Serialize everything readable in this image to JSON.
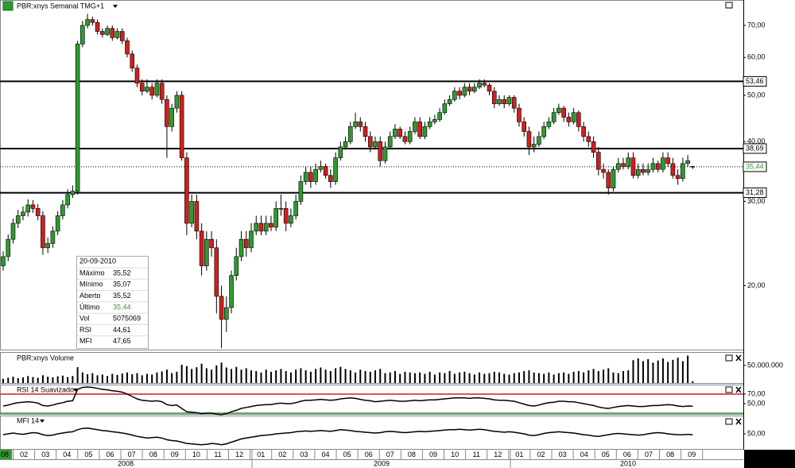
{
  "price": {
    "type": "candlestick",
    "title": "PBR:xnys Semanal TMG+1",
    "log": true,
    "ylim": [
      14.7,
      79.1
    ],
    "yticks": [
      {
        "value": 70,
        "label": "70,00"
      },
      {
        "value": 60,
        "label": "60,00"
      },
      {
        "value": 50,
        "label": "50,00"
      },
      {
        "value": 40,
        "label": "40,00"
      },
      {
        "value": 30,
        "label": "30,00"
      },
      {
        "value": 20,
        "label": "20,00"
      }
    ],
    "levels": [
      {
        "value": 53.46,
        "label": "53,46"
      },
      {
        "value": 38.69,
        "label": "38,69"
      },
      {
        "value": 31.28,
        "label": "31,28"
      }
    ],
    "last": {
      "value": 35.44,
      "label": "35,44"
    },
    "up_color": "#2f9a2f",
    "down_color": "#d11f1f",
    "candles": [
      [
        22,
        23.6,
        21.5,
        23
      ],
      [
        23,
        25.6,
        22.5,
        25
      ],
      [
        25,
        27.6,
        24.5,
        27
      ],
      [
        27,
        28.8,
        26.4,
        28
      ],
      [
        28,
        29.3,
        27.4,
        28.5
      ],
      [
        28.5,
        30.3,
        27.9,
        29.5
      ],
      [
        29.5,
        30.2,
        28.4,
        29
      ],
      [
        29,
        29.6,
        27.4,
        28
      ],
      [
        28,
        28.6,
        23.2,
        24
      ],
      [
        24,
        25.2,
        23.4,
        24.5
      ],
      [
        24.5,
        26.6,
        24,
        26
      ],
      [
        26,
        28.6,
        25.5,
        28
      ],
      [
        28,
        30.2,
        27.5,
        29.5
      ],
      [
        29.5,
        31.8,
        29,
        31
      ],
      [
        31,
        32.4,
        30.5,
        31.5
      ],
      [
        31.5,
        65,
        31,
        64
      ],
      [
        64,
        71.5,
        63,
        70
      ],
      [
        70,
        74,
        69,
        72
      ],
      [
        72,
        73,
        70,
        71
      ],
      [
        71,
        72,
        67,
        68
      ],
      [
        68,
        69,
        66,
        67
      ],
      [
        67,
        70,
        66.5,
        69
      ],
      [
        69,
        70,
        65,
        66
      ],
      [
        66,
        69,
        65.5,
        68
      ],
      [
        68,
        69,
        64,
        65
      ],
      [
        65,
        66,
        60,
        61
      ],
      [
        61,
        62,
        56,
        57
      ],
      [
        57,
        58,
        52,
        53
      ],
      [
        53,
        54,
        50,
        51
      ],
      [
        51,
        54,
        50.5,
        52
      ],
      [
        52,
        53,
        49,
        50
      ],
      [
        50,
        54,
        49.5,
        53
      ],
      [
        53,
        54,
        48,
        49
      ],
      [
        49,
        50,
        37,
        43
      ],
      [
        43,
        48,
        42,
        47
      ],
      [
        47,
        51,
        46,
        50
      ],
      [
        50,
        51,
        36.5,
        37
      ],
      [
        37,
        38,
        25.5,
        27
      ],
      [
        27,
        31,
        26.5,
        30
      ],
      [
        30,
        31,
        25,
        26
      ],
      [
        26,
        27,
        21,
        22
      ],
      [
        22,
        26,
        21.5,
        25
      ],
      [
        25,
        26,
        23,
        24
      ],
      [
        24,
        25,
        17.5,
        19
      ],
      [
        19,
        20,
        14.8,
        17
      ],
      [
        17,
        19,
        16,
        18
      ],
      [
        18,
        21.5,
        17.5,
        21
      ],
      [
        21,
        24,
        20.5,
        23
      ],
      [
        23,
        26,
        22.5,
        25
      ],
      [
        25,
        26,
        23,
        24
      ],
      [
        24,
        27,
        23.5,
        26
      ],
      [
        26,
        28,
        25.5,
        27
      ],
      [
        27,
        28,
        25.5,
        26
      ],
      [
        26,
        28,
        25.5,
        27
      ],
      [
        27,
        28,
        26,
        26.5
      ],
      [
        26.5,
        30,
        26,
        29
      ],
      [
        29,
        31,
        28,
        29
      ],
      [
        29,
        30,
        26,
        27
      ],
      [
        27,
        29,
        26.5,
        28
      ],
      [
        28,
        31,
        27.5,
        30
      ],
      [
        30,
        34,
        29.5,
        33
      ],
      [
        33,
        35.5,
        32.5,
        34.5
      ],
      [
        34.5,
        35.5,
        32,
        33
      ],
      [
        33,
        36,
        32.5,
        35
      ],
      [
        35,
        36.5,
        34.5,
        35.5
      ],
      [
        35.5,
        36,
        33.5,
        34
      ],
      [
        34,
        35,
        32,
        33
      ],
      [
        33,
        38,
        32.5,
        37
      ],
      [
        37,
        40,
        36.5,
        39
      ],
      [
        39,
        41,
        38.5,
        40
      ],
      [
        40,
        44,
        39.5,
        43
      ],
      [
        43,
        46,
        42.5,
        44
      ],
      [
        44,
        45,
        42,
        43
      ],
      [
        43,
        44,
        40,
        41
      ],
      [
        41,
        42,
        38,
        39
      ],
      [
        39,
        41,
        38.5,
        40
      ],
      [
        40,
        41,
        35.5,
        36.5
      ],
      [
        36.5,
        40,
        36,
        39
      ],
      [
        39,
        42,
        38.5,
        41
      ],
      [
        41,
        43.5,
        40.5,
        42.5
      ],
      [
        42.5,
        43,
        40.5,
        41
      ],
      [
        41,
        42,
        39.5,
        40
      ],
      [
        40,
        43,
        39.5,
        42
      ],
      [
        42,
        45,
        41.5,
        44
      ],
      [
        44,
        45,
        40.5,
        41
      ],
      [
        41,
        44,
        40.5,
        43
      ],
      [
        43,
        45,
        42.5,
        44
      ],
      [
        44,
        45.5,
        43.5,
        44.5
      ],
      [
        44.5,
        47,
        44,
        46
      ],
      [
        46,
        49,
        45.5,
        48
      ],
      [
        48,
        50,
        47.5,
        49
      ],
      [
        49,
        52,
        48.5,
        51
      ],
      [
        51,
        52,
        49,
        50
      ],
      [
        50,
        53,
        49.5,
        52
      ],
      [
        52,
        53,
        50,
        51
      ],
      [
        51,
        53,
        50.5,
        52
      ],
      [
        52,
        54,
        51.5,
        53
      ],
      [
        53,
        54,
        52,
        52.5
      ],
      [
        52.5,
        53,
        50,
        51
      ],
      [
        51,
        52,
        47,
        48
      ],
      [
        48,
        50,
        47.5,
        49
      ],
      [
        49,
        50,
        47,
        48
      ],
      [
        48,
        50,
        47.5,
        49.5
      ],
      [
        49.5,
        50,
        46,
        47
      ],
      [
        47,
        48,
        43,
        44
      ],
      [
        44,
        45,
        41,
        42
      ],
      [
        42,
        43,
        37.5,
        39
      ],
      [
        39,
        41,
        38,
        39.5
      ],
      [
        39.5,
        42,
        39,
        41
      ],
      [
        41,
        44,
        40.5,
        43
      ],
      [
        43,
        45,
        42.5,
        44
      ],
      [
        44,
        47,
        43.5,
        46
      ],
      [
        46,
        48,
        45.5,
        47
      ],
      [
        47,
        47.5,
        44,
        45
      ],
      [
        45,
        46,
        43,
        44
      ],
      [
        44,
        47,
        43.5,
        46
      ],
      [
        46,
        46.5,
        42,
        43
      ],
      [
        43,
        44,
        40,
        41
      ],
      [
        41,
        42,
        39,
        40
      ],
      [
        40,
        41,
        37,
        38
      ],
      [
        38,
        39,
        34,
        35
      ],
      [
        35,
        36,
        33.5,
        34.5
      ],
      [
        34.5,
        35,
        31,
        32
      ],
      [
        32,
        35.5,
        31.5,
        35
      ],
      [
        35,
        37,
        34.5,
        36
      ],
      [
        36,
        37,
        35,
        35.5
      ],
      [
        35.5,
        38,
        35,
        37
      ],
      [
        37,
        38,
        33.5,
        34
      ],
      [
        34,
        36,
        33.5,
        35
      ],
      [
        35,
        36,
        34,
        34.5
      ],
      [
        34.5,
        36,
        34,
        35
      ],
      [
        35,
        37,
        34.5,
        36
      ],
      [
        36,
        36.5,
        34.5,
        35
      ],
      [
        35,
        38,
        34.5,
        37
      ],
      [
        37,
        38,
        35.5,
        36
      ],
      [
        36,
        37,
        33.5,
        34
      ],
      [
        34,
        35,
        32.5,
        33.5
      ],
      [
        33.5,
        37,
        33,
        36
      ],
      [
        36,
        37.5,
        35.5,
        36.5
      ],
      [
        35.52,
        35.52,
        35.07,
        35.44
      ]
    ]
  },
  "volume": {
    "type": "bar",
    "title": "PBR:xnys Volume",
    "ylim": [
      0,
      86000000
    ],
    "yticks": [
      {
        "value": 50000000,
        "label": "50.000.000"
      }
    ],
    "color": "#000000",
    "values": [
      12000000,
      15000000,
      18000000,
      14000000,
      16000000,
      20000000,
      17000000,
      15000000,
      22000000,
      18000000,
      16000000,
      19000000,
      21000000,
      17000000,
      20000000,
      45000000,
      30000000,
      25000000,
      28000000,
      22000000,
      24000000,
      20000000,
      26000000,
      23000000,
      27000000,
      30000000,
      25000000,
      28000000,
      22000000,
      26000000,
      24000000,
      30000000,
      33000000,
      38000000,
      28000000,
      32000000,
      52000000,
      48000000,
      40000000,
      45000000,
      55000000,
      42000000,
      38000000,
      50000000,
      58000000,
      44000000,
      40000000,
      46000000,
      38000000,
      42000000,
      36000000,
      34000000,
      30000000,
      38000000,
      32000000,
      36000000,
      40000000,
      34000000,
      30000000,
      38000000,
      42000000,
      36000000,
      32000000,
      40000000,
      44000000,
      38000000,
      34000000,
      42000000,
      46000000,
      40000000,
      36000000,
      30000000,
      38000000,
      34000000,
      32000000,
      36000000,
      40000000,
      28000000,
      30000000,
      34000000,
      26000000,
      32000000,
      30000000,
      28000000,
      30000000,
      26000000,
      32000000,
      24000000,
      30000000,
      28000000,
      34000000,
      26000000,
      30000000,
      32000000,
      28000000,
      24000000,
      30000000,
      26000000,
      28000000,
      32000000,
      30000000,
      26000000,
      24000000,
      28000000,
      30000000,
      34000000,
      36000000,
      30000000,
      28000000,
      26000000,
      30000000,
      24000000,
      28000000,
      30000000,
      26000000,
      32000000,
      34000000,
      30000000,
      36000000,
      40000000,
      34000000,
      38000000,
      42000000,
      30000000,
      28000000,
      34000000,
      36000000,
      65000000,
      70000000,
      62000000,
      68000000,
      58000000,
      64000000,
      70000000,
      60000000,
      66000000,
      72000000,
      62000000,
      78000000,
      5075069
    ]
  },
  "rsi": {
    "type": "line",
    "title": "RSI 14 Suavizado",
    "ylim": [
      26.7,
      88.3
    ],
    "yticks": [
      {
        "value": 70,
        "label": "70,00"
      },
      {
        "value": 50,
        "label": "50,00"
      }
    ],
    "overbought": 70,
    "oversold": 30,
    "color": "#000000",
    "values": [
      45,
      47,
      50,
      52,
      53,
      54,
      53,
      51,
      46,
      45,
      47,
      50,
      52,
      55,
      56,
      80,
      84,
      85,
      84,
      82,
      80,
      79,
      77,
      76,
      74,
      70,
      65,
      60,
      57,
      56,
      55,
      56,
      54,
      48,
      46,
      47,
      40,
      33,
      32,
      31,
      29,
      30,
      30,
      28,
      27,
      29,
      33,
      36,
      40,
      42,
      44,
      46,
      47,
      48,
      48,
      50,
      51,
      50,
      50,
      52,
      55,
      57,
      57,
      58,
      59,
      58,
      57,
      58,
      60,
      61,
      62,
      61,
      59,
      57,
      56,
      54,
      55,
      56,
      57,
      56,
      55,
      55,
      56,
      57,
      56,
      57,
      58,
      58,
      59,
      60,
      61,
      62,
      62,
      62,
      61,
      62,
      62,
      61,
      60,
      58,
      57,
      57,
      56,
      55,
      52,
      49,
      46,
      45,
      47,
      50,
      52,
      53,
      55,
      55,
      54,
      54,
      52,
      50,
      48,
      46,
      43,
      41,
      40,
      42,
      44,
      45,
      46,
      45,
      44,
      44,
      45,
      46,
      46,
      47,
      48,
      47,
      45,
      44,
      45,
      44.61
    ]
  },
  "mfi": {
    "type": "line",
    "title": "MFI 14",
    "ylim": [
      12,
      92
    ],
    "yticks": [
      {
        "value": 50,
        "label": "50,00"
      }
    ],
    "color": "#000000",
    "values": [
      48,
      50,
      52,
      50,
      49,
      51,
      53,
      52,
      48,
      46,
      47,
      50,
      52,
      54,
      55,
      60,
      63,
      64,
      62,
      60,
      58,
      57,
      55,
      54,
      52,
      50,
      47,
      44,
      42,
      40,
      41,
      42,
      40,
      36,
      34,
      33,
      30,
      27,
      26,
      25,
      24,
      25,
      27,
      26,
      24,
      26,
      30,
      34,
      38,
      40,
      42,
      44,
      46,
      47,
      48,
      50,
      51,
      52,
      53,
      55,
      56,
      57,
      56,
      57,
      58,
      57,
      56,
      58,
      60,
      59,
      58,
      56,
      55,
      54,
      53,
      52,
      53,
      55,
      56,
      55,
      54,
      53,
      54,
      55,
      56,
      55,
      56,
      57,
      58,
      59,
      60,
      60,
      61,
      60,
      59,
      60,
      61,
      60,
      58,
      56,
      55,
      54,
      55,
      54,
      52,
      50,
      47,
      46,
      48,
      51,
      53,
      54,
      55,
      54,
      53,
      52,
      50,
      48,
      47,
      45,
      44,
      46,
      48,
      50,
      51,
      50,
      49,
      48,
      47,
      48,
      50,
      52,
      53,
      52,
      50,
      49,
      48,
      48,
      49,
      47.65
    ]
  },
  "x_axis": {
    "months": [
      "08",
      "02",
      "03",
      "04",
      "05",
      "06",
      "07",
      "08",
      "09",
      "10",
      "11",
      "12",
      "01",
      "02",
      "03",
      "04",
      "05",
      "06",
      "07",
      "08",
      "09",
      "10",
      "11",
      "12",
      "01",
      "02",
      "03",
      "04",
      "05",
      "06",
      "07",
      "08",
      "09"
    ],
    "years": [
      "2008",
      "2009",
      "2010"
    ]
  },
  "info": {
    "date": "20-09-2010",
    "rows": [
      [
        "Máximo",
        "35,52"
      ],
      [
        "Mínimo",
        "35,07"
      ],
      [
        "Aberto",
        "35,52"
      ],
      [
        "Último",
        "35,44"
      ],
      [
        "Vol",
        "5075069"
      ],
      [
        "RSI",
        "44,61"
      ],
      [
        "MFI",
        "47,65"
      ]
    ]
  }
}
